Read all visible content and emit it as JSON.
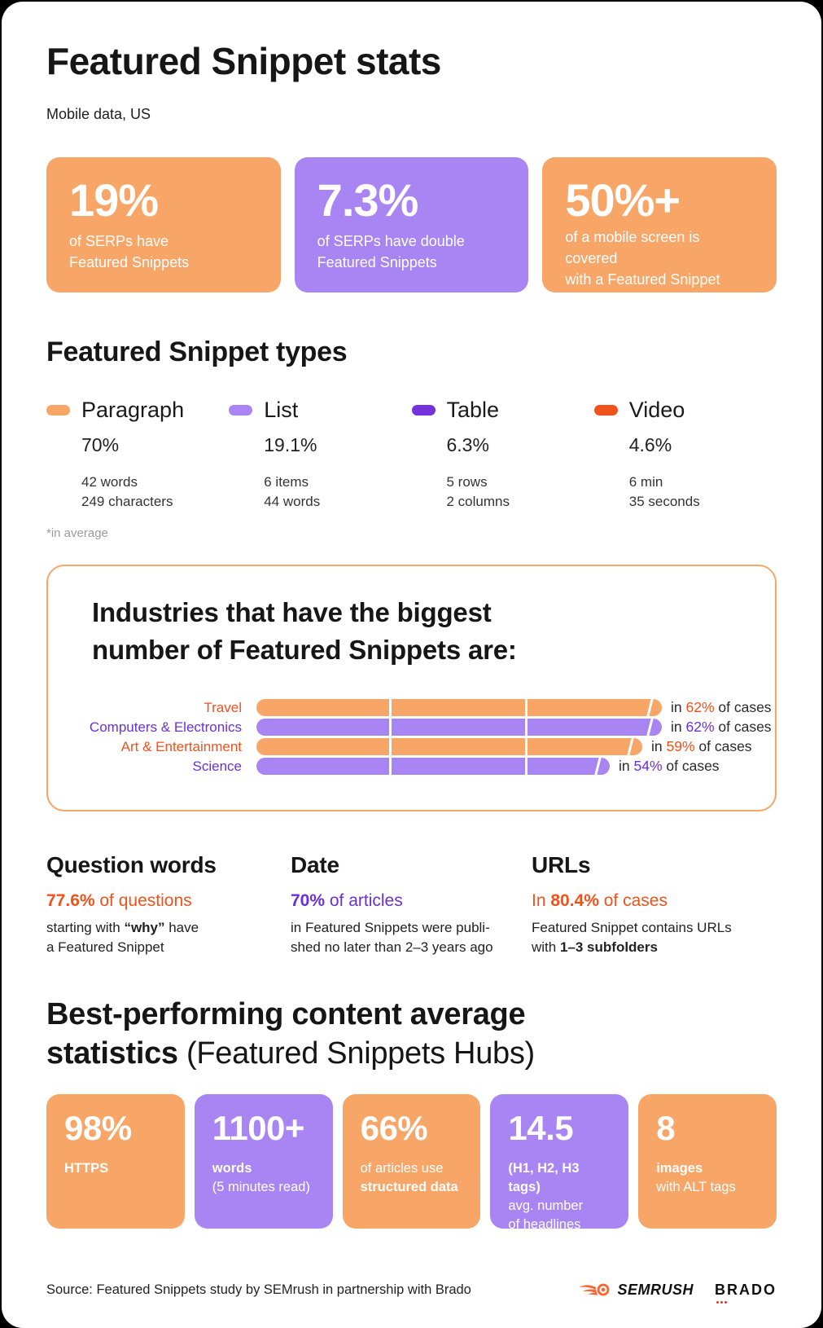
{
  "page": {
    "title": "Featured Snippet stats",
    "subtitle": "Mobile data, US"
  },
  "colors": {
    "orange": "#F7A667",
    "purple": "#A885F2",
    "dark_purple": "#7432DC",
    "red_orange": "#F1511B",
    "purple_text": "#6B30D7",
    "panel_border": "#F7A667"
  },
  "hero_cards": [
    {
      "value": "19%",
      "line1": "of SERPs have",
      "line2": "Featured Snippets"
    },
    {
      "value": "7.3%",
      "line1": "of SERPs have double",
      "line2": "Featured Snippets"
    },
    {
      "value": "50%+",
      "line1": "of a mobile screen is covered",
      "line2": "with a Featured Snippet"
    }
  ],
  "hero_colors": [
    "#F7A667",
    "#A885F2",
    "#F7A667"
  ],
  "types_section": {
    "heading": "Featured Snippet types",
    "footnote": "*in average",
    "items": [
      {
        "name": "Paragraph",
        "percent": "70%",
        "detail1": "42 words",
        "detail2": "249 characters",
        "swatch": "#F7A667"
      },
      {
        "name": "List",
        "percent": "19.1%",
        "detail1": "6 items",
        "detail2": "44 words",
        "swatch": "#A885F2"
      },
      {
        "name": "Table",
        "percent": "6.3%",
        "detail1": "5 rows",
        "detail2": "2 columns",
        "swatch": "#7432DC"
      },
      {
        "name": "Video",
        "percent": "4.6%",
        "detail1": "6 min",
        "detail2": "35 seconds",
        "swatch": "#F1511B"
      }
    ]
  },
  "industries": {
    "heading_line1": "Industries that have the biggest",
    "heading_line2": "number of Featured Snippets are:"
  },
  "chart_data": {
    "type": "bar",
    "orientation": "horizontal",
    "title": "Industries that have the biggest number of Featured Snippets are:",
    "categories": [
      "Travel",
      "Computers & Electronics",
      "Art & Entertainment",
      "Science"
    ],
    "values": [
      62,
      62,
      59,
      54
    ],
    "unit": "% of cases",
    "percent_labels": [
      "62%",
      "62%",
      "59%",
      "54%"
    ],
    "annotation_prefix": "in ",
    "annotation_suffix": " of cases",
    "bar_colors": [
      "#F7A667",
      "#A885F2",
      "#F7A667",
      "#A885F2"
    ],
    "label_colors": [
      "#F1511B",
      "#6B30D7",
      "#F1511B",
      "#6B30D7"
    ],
    "xlim": [
      0,
      62
    ],
    "grid": false,
    "legend": false
  },
  "facts": {
    "question_words": {
      "heading": "Question words",
      "stat_bold": "77.6%",
      "stat_rest": " of questions",
      "line1_pre": "starting with ",
      "line1_bold": "“why”",
      "line1_post": " have",
      "line2": "a Featured Snippet"
    },
    "date": {
      "heading": "Date",
      "stat_bold": "70%",
      "stat_rest": " of articles",
      "line1": "in Featured Snippets were publi-",
      "line2": "shed no later than 2–3 years ago"
    },
    "urls": {
      "heading": "URLs",
      "stat_pre": "In ",
      "stat_bold": "80.4%",
      "stat_rest": " of cases",
      "line1": "Featured Snippet contains URLs",
      "line2_pre": "with ",
      "line2_bold": "1–3 subfolders"
    }
  },
  "best_section": {
    "heading_line1": "Best-performing content average",
    "heading_line2_bold": "statistics",
    "heading_line2_light": " (Featured Snippets Hubs)",
    "cards": [
      {
        "value": "98%",
        "l1": "HTTPS"
      },
      {
        "value": "1100+",
        "l1": "words",
        "l2": "(5 minutes read)"
      },
      {
        "value": "66%",
        "l1": "of articles use",
        "l2": "structured data"
      },
      {
        "value": "14.5",
        "l1": "(H1, H2, H3 tags)",
        "l2": "avg. number",
        "l3": "of headlines"
      },
      {
        "value": "8",
        "l1": "images",
        "l2": "with ALT tags"
      }
    ],
    "card_colors": [
      "#F7A667",
      "#A885F2",
      "#F7A667",
      "#A885F2",
      "#F7A667"
    ]
  },
  "footer": {
    "source": "Source: Featured Snippets study by SEMrush in partnership with Brado",
    "semrush_logo": "SEMRUSH",
    "brado_logo": "BRADO"
  }
}
